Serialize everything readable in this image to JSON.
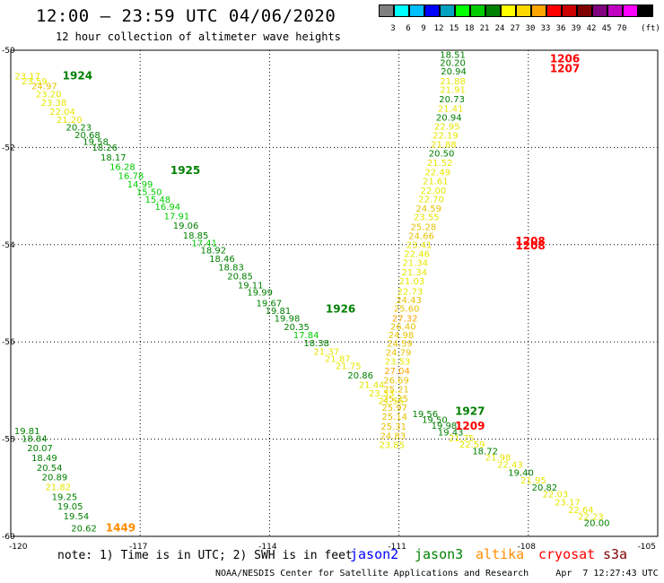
{
  "title": "12:00 – 23:59 UTC 04/06/2020",
  "subtitle": "12 hour collection of altimeter wave heights",
  "scale": {
    "unit_label": "(ft)",
    "bins": [
      {
        "label": "",
        "color": "#808080"
      },
      {
        "label": "3",
        "color": "#00ffff"
      },
      {
        "label": "6",
        "color": "#00bfff"
      },
      {
        "label": "9",
        "color": "#0000ff"
      },
      {
        "label": "12",
        "color": "#00a0c0"
      },
      {
        "label": "15",
        "color": "#00ff00"
      },
      {
        "label": "18",
        "color": "#00cc00"
      },
      {
        "label": "21",
        "color": "#008000"
      },
      {
        "label": "24",
        "color": "#ffff00"
      },
      {
        "label": "27",
        "color": "#ffd700"
      },
      {
        "label": "30",
        "color": "#ffa500"
      },
      {
        "label": "33",
        "color": "#ff0000"
      },
      {
        "label": "36",
        "color": "#cc0000"
      },
      {
        "label": "39",
        "color": "#800000"
      },
      {
        "label": "42",
        "color": "#800080"
      },
      {
        "label": "45",
        "color": "#c000c0"
      },
      {
        "label": "70",
        "color": "#ff00ff"
      },
      {
        "label": "",
        "color": "#000000"
      }
    ]
  },
  "note": "note: 1) Time is in UTC; 2) SWH is in feet",
  "satellites": [
    {
      "name": "jason2",
      "color": "#0000ff"
    },
    {
      "name": "jason3",
      "color": "#008000"
    },
    {
      "name": "altika",
      "color": "#ff8c00"
    },
    {
      "name": "cryosat",
      "color": "#ff0000"
    },
    {
      "name": "s3a",
      "color": "#800000"
    }
  ],
  "credit": "NOAA/NESDIS Center for Satellite Applications and Research     Apr  7 12:27:43 UTC 2020",
  "chart_data": {
    "type": "scatter",
    "title": "12:00 – 23:59 UTC 04/06/2020",
    "xlim": [
      -120,
      -105
    ],
    "ylim": [
      -60,
      -50
    ],
    "xticks": [
      "-120",
      "-117",
      "-114",
      "-111",
      "-108",
      "-105"
    ],
    "yticks": [
      "-50",
      "-52",
      "-54",
      "-56",
      "-58",
      "-60"
    ],
    "grid": true,
    "legend": "bottom",
    "time_labels": [
      {
        "x": -118.8,
        "y": -50.6,
        "text": "1924",
        "color": "#008000"
      },
      {
        "x": -116.3,
        "y": -52.55,
        "text": "1925",
        "color": "#008000"
      },
      {
        "x": -112.7,
        "y": -55.4,
        "text": "1926",
        "color": "#008000"
      },
      {
        "x": -109.7,
        "y": -57.5,
        "text": "1927",
        "color": "#008000"
      },
      {
        "x": -107.5,
        "y": -50.25,
        "text": "1206",
        "color": "#ff0000"
      },
      {
        "x": -107.5,
        "y": -50.45,
        "text": "1207",
        "color": "#ff0000"
      },
      {
        "x": -108.3,
        "y": -54.0,
        "text": "1208",
        "color": "#ff0000"
      },
      {
        "x": -108.3,
        "y": -54.1,
        "text": "1208",
        "color": "#ff0000"
      },
      {
        "x": -109.7,
        "y": -57.8,
        "text": "1209",
        "color": "#ff0000"
      },
      {
        "x": -117.8,
        "y": -59.9,
        "text": "1449",
        "color": "#ff8c00"
      }
    ],
    "track_jason3": [
      {
        "x": -119.91,
        "y": -50.6,
        "v": 23.17
      },
      {
        "x": -119.75,
        "y": -50.7,
        "v": 23.59
      },
      {
        "x": -119.52,
        "y": -50.8,
        "v": 24.97
      },
      {
        "x": -119.42,
        "y": -50.97,
        "v": 23.2
      },
      {
        "x": -119.3,
        "y": -51.14,
        "v": 23.38
      },
      {
        "x": -119.1,
        "y": -51.33,
        "v": 22.04
      },
      {
        "x": -118.94,
        "y": -51.49,
        "v": 21.2
      },
      {
        "x": -118.72,
        "y": -51.65,
        "v": 20.23
      },
      {
        "x": -118.52,
        "y": -51.81,
        "v": 20.68
      },
      {
        "x": -118.33,
        "y": -51.95,
        "v": 19.58
      },
      {
        "x": -118.12,
        "y": -52.07,
        "v": 18.26
      },
      {
        "x": -117.92,
        "y": -52.27,
        "v": 18.17
      },
      {
        "x": -117.71,
        "y": -52.46,
        "v": 16.28
      },
      {
        "x": -117.51,
        "y": -52.65,
        "v": 16.78
      },
      {
        "x": -117.3,
        "y": -52.82,
        "v": 14.99
      },
      {
        "x": -117.09,
        "y": -52.98,
        "v": 15.5
      },
      {
        "x": -116.89,
        "y": -53.14,
        "v": 15.48
      },
      {
        "x": -116.66,
        "y": -53.28,
        "v": 16.94
      },
      {
        "x": -116.45,
        "y": -53.48,
        "v": 17.91
      },
      {
        "x": -116.24,
        "y": -53.67,
        "v": 19.06
      },
      {
        "x": -116.01,
        "y": -53.87,
        "v": 18.85
      },
      {
        "x": -115.81,
        "y": -54.03,
        "v": 17.41
      },
      {
        "x": -115.6,
        "y": -54.18,
        "v": 18.92
      },
      {
        "x": -115.4,
        "y": -54.35,
        "v": 18.46
      },
      {
        "x": -115.19,
        "y": -54.53,
        "v": 18.83
      },
      {
        "x": -114.98,
        "y": -54.71,
        "v": 20.85
      },
      {
        "x": -114.74,
        "y": -54.9,
        "v": 19.11
      },
      {
        "x": -114.52,
        "y": -55.05,
        "v": 19.99
      },
      {
        "x": -114.31,
        "y": -55.27,
        "v": 19.67
      },
      {
        "x": -114.1,
        "y": -55.42,
        "v": 19.81
      },
      {
        "x": -113.89,
        "y": -55.58,
        "v": 19.98
      },
      {
        "x": -113.67,
        "y": -55.76,
        "v": 20.35
      },
      {
        "x": -113.45,
        "y": -55.92,
        "v": 17.84
      },
      {
        "x": -113.21,
        "y": -56.09,
        "v": 18.38
      },
      {
        "x": -112.98,
        "y": -56.26,
        "v": 21.37
      },
      {
        "x": -112.72,
        "y": -56.41,
        "v": 21.87
      },
      {
        "x": -112.47,
        "y": -56.56,
        "v": 21.75
      },
      {
        "x": -112.19,
        "y": -56.75,
        "v": 20.86
      },
      {
        "x": -111.93,
        "y": -56.95,
        "v": 21.44
      },
      {
        "x": -111.7,
        "y": -57.12,
        "v": 23.33
      },
      {
        "x": -111.48,
        "y": -57.28,
        "v": 21.55
      },
      {
        "x": -110.69,
        "y": -57.55,
        "v": 19.56
      },
      {
        "x": -110.47,
        "y": -57.67,
        "v": 19.5
      },
      {
        "x": -110.25,
        "y": -57.79,
        "v": 19.98
      },
      {
        "x": -110.1,
        "y": -57.92,
        "v": 19.43
      },
      {
        "x": -109.85,
        "y": -58.04,
        "v": 21.75
      },
      {
        "x": -109.6,
        "y": -58.17,
        "v": 22.59
      },
      {
        "x": -109.3,
        "y": -58.31,
        "v": 18.72
      },
      {
        "x": -109.0,
        "y": -58.44,
        "v": 21.98
      },
      {
        "x": -108.72,
        "y": -58.59,
        "v": 22.43
      },
      {
        "x": -108.47,
        "y": -58.75,
        "v": 19.4
      },
      {
        "x": -108.18,
        "y": -58.91,
        "v": 21.95
      },
      {
        "x": -107.92,
        "y": -59.06,
        "v": 20.82
      },
      {
        "x": -107.67,
        "y": -59.2,
        "v": 22.03
      },
      {
        "x": -107.39,
        "y": -59.36,
        "v": 23.17
      },
      {
        "x": -107.08,
        "y": -59.52,
        "v": 22.64
      },
      {
        "x": -106.85,
        "y": -59.66,
        "v": 22.23
      },
      {
        "x": -106.71,
        "y": -59.79,
        "v": 20.0
      }
    ],
    "track_cryosat": [
      {
        "x": -110.05,
        "y": -50.16,
        "v": 18.51
      },
      {
        "x": -110.05,
        "y": -50.32,
        "v": 20.2
      },
      {
        "x": -110.03,
        "y": -50.5,
        "v": 20.94
      },
      {
        "x": -110.05,
        "y": -50.7,
        "v": 21.88
      },
      {
        "x": -110.05,
        "y": -50.88,
        "v": 21.91
      },
      {
        "x": -110.07,
        "y": -51.07,
        "v": 20.73
      },
      {
        "x": -110.1,
        "y": -51.26,
        "v": 21.41
      },
      {
        "x": -110.14,
        "y": -51.45,
        "v": 20.94
      },
      {
        "x": -110.18,
        "y": -51.63,
        "v": 22.95
      },
      {
        "x": -110.22,
        "y": -51.82,
        "v": 22.19
      },
      {
        "x": -110.26,
        "y": -52.0,
        "v": 21.88
      },
      {
        "x": -110.31,
        "y": -52.19,
        "v": 20.5
      },
      {
        "x": -110.35,
        "y": -52.38,
        "v": 21.52
      },
      {
        "x": -110.4,
        "y": -52.57,
        "v": 22.49
      },
      {
        "x": -110.45,
        "y": -52.76,
        "v": 21.61
      },
      {
        "x": -110.5,
        "y": -52.95,
        "v": 22.0
      },
      {
        "x": -110.55,
        "y": -53.13,
        "v": 22.7
      },
      {
        "x": -110.61,
        "y": -53.32,
        "v": 24.59
      },
      {
        "x": -110.66,
        "y": -53.5,
        "v": 23.55
      },
      {
        "x": -110.73,
        "y": -53.7,
        "v": 25.28
      },
      {
        "x": -110.78,
        "y": -53.88,
        "v": 24.66
      },
      {
        "x": -110.83,
        "y": -54.07,
        "v": 23.41
      },
      {
        "x": -110.88,
        "y": -54.25,
        "v": 22.46
      },
      {
        "x": -110.92,
        "y": -54.44,
        "v": 21.34
      },
      {
        "x": -110.94,
        "y": -54.63,
        "v": 21.34
      },
      {
        "x": -111.0,
        "y": -54.82,
        "v": 21.03
      },
      {
        "x": -111.04,
        "y": -55.03,
        "v": 22.73
      },
      {
        "x": -111.07,
        "y": -55.2,
        "v": 24.43
      },
      {
        "x": -111.12,
        "y": -55.38,
        "v": 25.6
      },
      {
        "x": -111.16,
        "y": -55.58,
        "v": 27.32
      },
      {
        "x": -111.2,
        "y": -55.75,
        "v": 26.4
      },
      {
        "x": -111.25,
        "y": -55.92,
        "v": 24.98
      },
      {
        "x": -111.28,
        "y": -56.1,
        "v": 24.59
      },
      {
        "x": -111.31,
        "y": -56.28,
        "v": 24.79
      },
      {
        "x": -111.33,
        "y": -56.47,
        "v": 23.53
      },
      {
        "x": -111.34,
        "y": -56.66,
        "v": 27.04
      },
      {
        "x": -111.36,
        "y": -56.85,
        "v": 26.69
      },
      {
        "x": -111.36,
        "y": -57.04,
        "v": 25.21
      },
      {
        "x": -111.38,
        "y": -57.23,
        "v": 25.25
      },
      {
        "x": -111.4,
        "y": -57.42,
        "v": 25.97
      },
      {
        "x": -111.4,
        "y": -57.6,
        "v": 25.14
      },
      {
        "x": -111.42,
        "y": -57.8,
        "v": 25.31
      },
      {
        "x": -111.44,
        "y": -58.0,
        "v": 24.83
      },
      {
        "x": -111.46,
        "y": -58.18,
        "v": 23.85
      }
    ],
    "track_altika": [
      {
        "x": -119.92,
        "y": -57.9,
        "v": 19.81
      },
      {
        "x": -119.75,
        "y": -58.05,
        "v": 18.84
      },
      {
        "x": -119.62,
        "y": -58.25,
        "v": 20.07
      },
      {
        "x": -119.52,
        "y": -58.45,
        "v": 18.49
      },
      {
        "x": -119.4,
        "y": -58.65,
        "v": 20.54
      },
      {
        "x": -119.28,
        "y": -58.85,
        "v": 20.89
      },
      {
        "x": -119.2,
        "y": -59.05,
        "v": 21.82
      },
      {
        "x": -119.05,
        "y": -59.25,
        "v": 19.25
      },
      {
        "x": -118.92,
        "y": -59.45,
        "v": 19.05
      },
      {
        "x": -118.78,
        "y": -59.65,
        "v": 19.54
      },
      {
        "x": -118.6,
        "y": -59.9,
        "v": 20.62
      }
    ]
  }
}
